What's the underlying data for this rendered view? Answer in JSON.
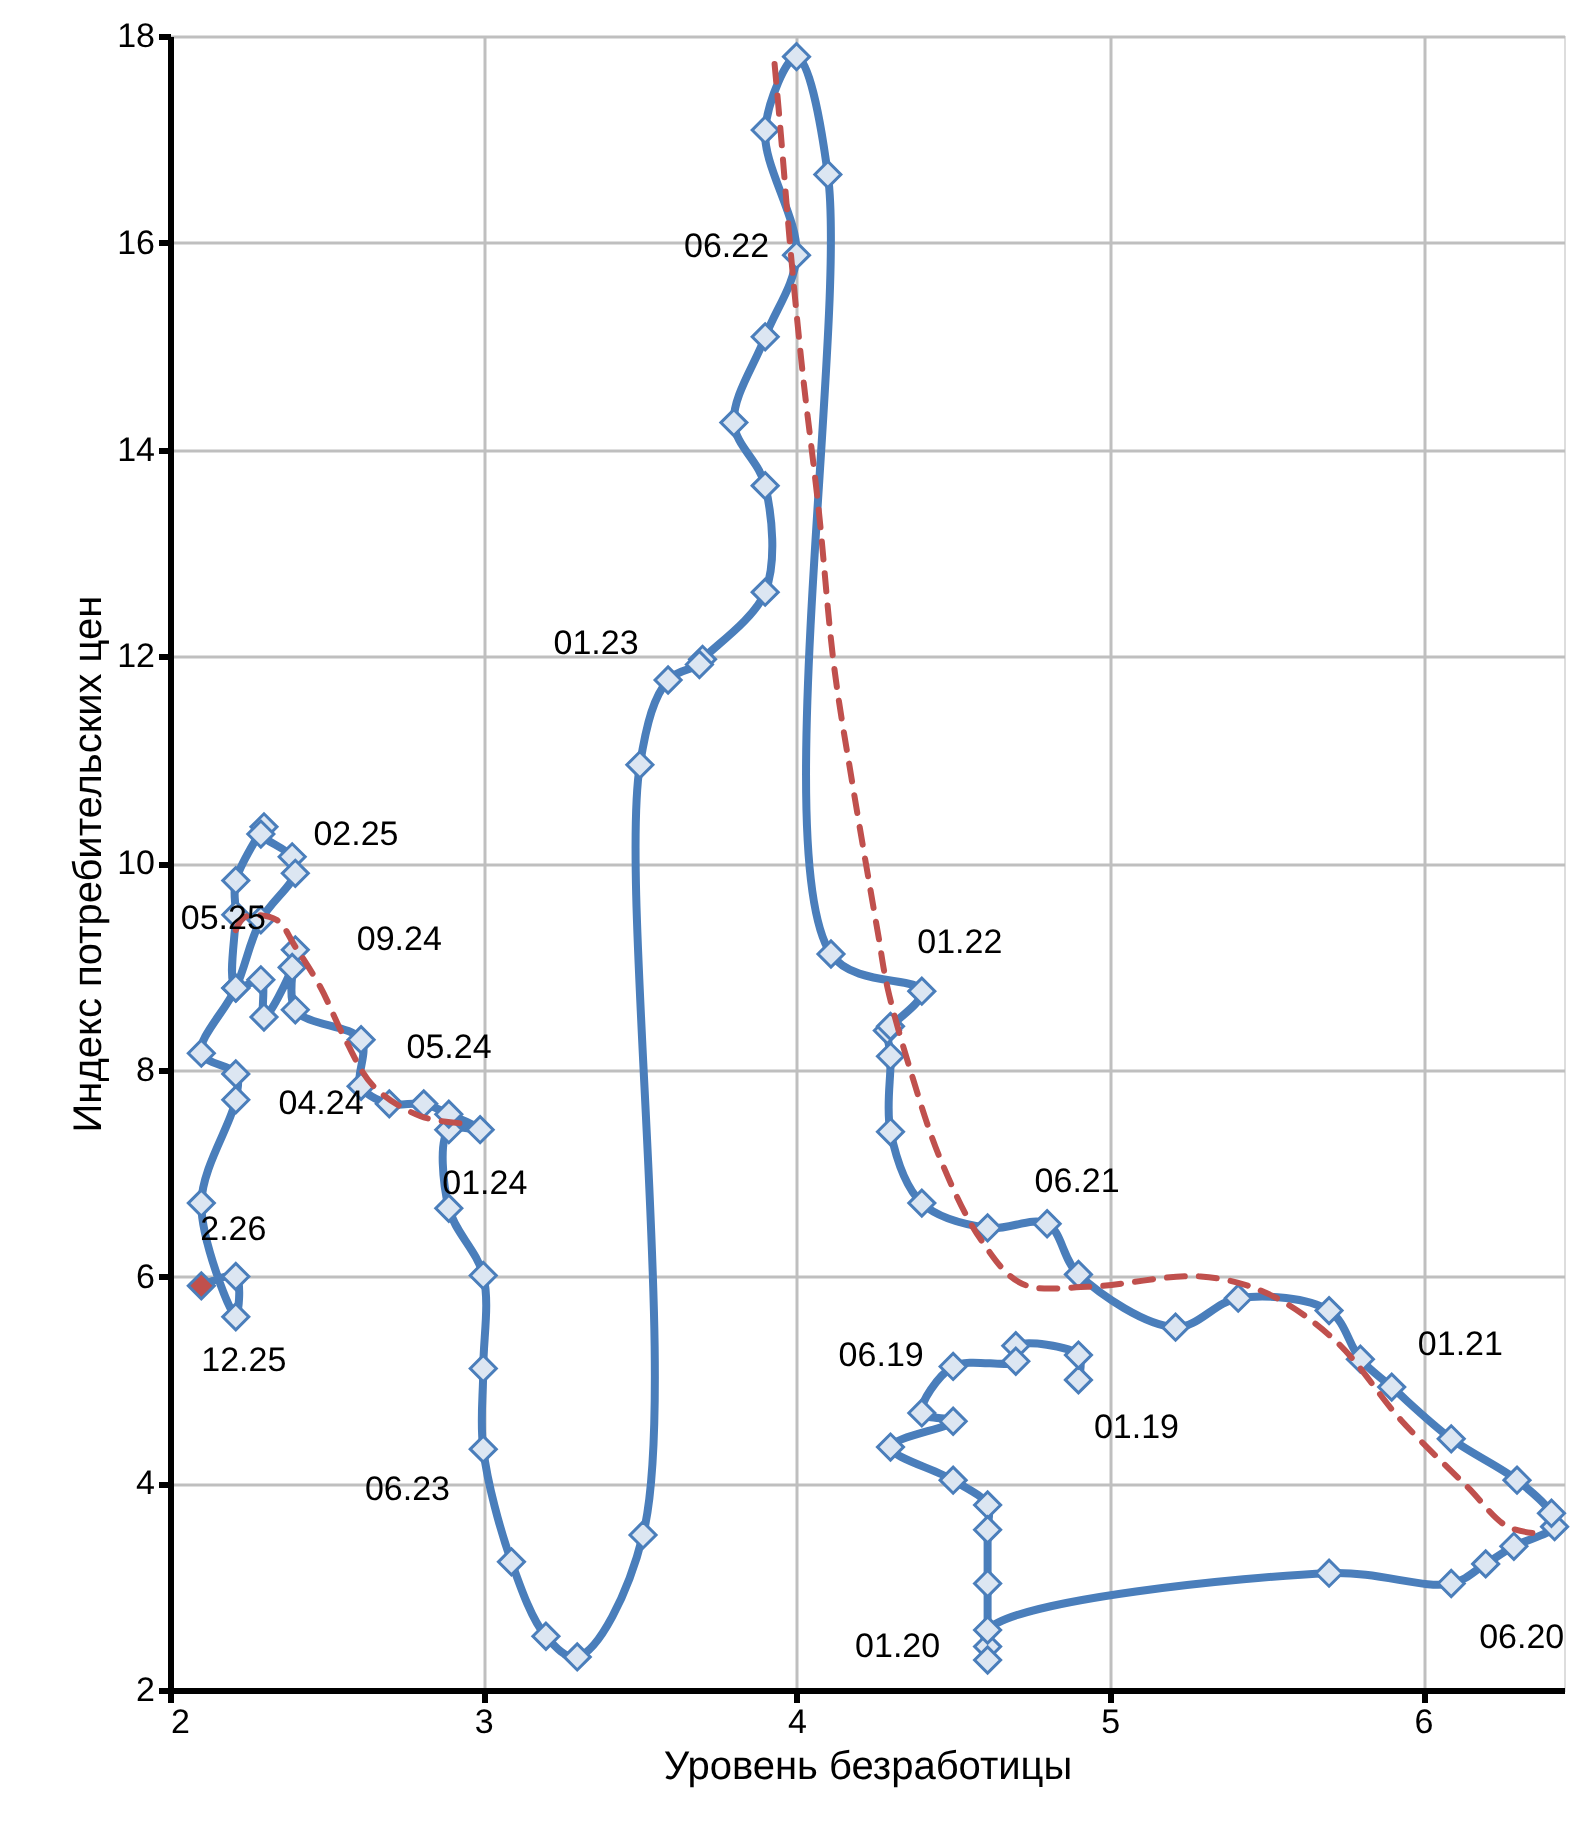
{
  "chart_data": {
    "type": "line",
    "xlabel": "Уровень безработицы",
    "ylabel": "Индекс потребительских цен",
    "xlim": [
      2,
      6.45
    ],
    "xticks": [
      2,
      3,
      4,
      5,
      6
    ],
    "ylim": [
      2,
      18
    ],
    "yticks": [
      2,
      4,
      6,
      8,
      10,
      12,
      14,
      16,
      18
    ],
    "grid": true,
    "series": [
      {
        "color": "#4a7ebb",
        "marker": "diamond",
        "line_style": "solid",
        "x": [
          4.9,
          4.9,
          4.7,
          4.7,
          4.5,
          4.4,
          4.5,
          4.3,
          4.5,
          4.61,
          4.61,
          4.61,
          4.61,
          4.61,
          4.61,
          5.7,
          6.09,
          6.2,
          6.29,
          6.42,
          6.41,
          6.3,
          6.09,
          5.9,
          5.8,
          5.7,
          5.41,
          5.21,
          4.9,
          4.8,
          4.61,
          4.4,
          4.3,
          4.3,
          4.29,
          4.3,
          4.4,
          4.11,
          4.1,
          4.0,
          3.9,
          4.0,
          3.9,
          3.8,
          3.9,
          3.9,
          3.7,
          3.69,
          3.59,
          3.5,
          3.51,
          3.3,
          3.2,
          3.09,
          3.0,
          3.0,
          3.0,
          2.89,
          2.89,
          2.99,
          2.89,
          2.81,
          2.7,
          2.61,
          2.61,
          2.4,
          2.4,
          2.39,
          2.3,
          2.29,
          2.21,
          2.21,
          2.21,
          2.3,
          2.29,
          2.39,
          2.4,
          2.29,
          2.21,
          2.1,
          2.21,
          2.21,
          2.1,
          2.21,
          2.21,
          2.1
        ],
        "values": [
          5.0,
          5.24,
          5.33,
          5.18,
          5.13,
          4.68,
          4.6,
          4.35,
          4.03,
          3.79,
          3.55,
          3.03,
          2.42,
          2.29,
          2.58,
          3.13,
          3.03,
          3.22,
          3.39,
          3.58,
          3.71,
          4.03,
          4.43,
          4.93,
          5.2,
          5.67,
          5.79,
          5.51,
          6.02,
          6.51,
          6.47,
          6.71,
          7.4,
          8.13,
          8.38,
          8.42,
          8.76,
          9.12,
          16.66,
          17.8,
          17.09,
          15.88,
          15.09,
          14.26,
          13.65,
          12.62,
          11.97,
          11.92,
          11.77,
          10.95,
          3.5,
          2.32,
          2.52,
          3.24,
          4.33,
          5.11,
          6.01,
          6.66,
          7.42,
          7.42,
          7.57,
          7.67,
          7.67,
          7.84,
          8.29,
          8.58,
          9.16,
          8.99,
          8.51,
          8.87,
          8.79,
          9.5,
          9.83,
          10.35,
          10.28,
          10.06,
          9.9,
          9.45,
          8.79,
          8.16,
          7.96,
          7.71,
          6.71,
          5.61,
          6.0,
          5.91
        ],
        "colors": [
          "#dce6f2",
          "#dce6f2",
          "#dce6f2",
          "#dce6f2",
          "#dce6f2",
          "#dce6f2",
          "#dce6f2",
          "#dce6f2",
          "#dce6f2",
          "#dce6f2",
          "#dce6f2",
          "#dce6f2",
          "#dce6f2",
          "#dce6f2",
          "#dce6f2",
          "#dce6f2",
          "#dce6f2",
          "#dce6f2",
          "#dce6f2",
          "#dce6f2",
          "#dce6f2",
          "#dce6f2",
          "#dce6f2",
          "#dce6f2",
          "#dce6f2",
          "#dce6f2",
          "#dce6f2",
          "#dce6f2",
          "#dce6f2",
          "#dce6f2",
          "#dce6f2",
          "#dce6f2",
          "#dce6f2",
          "#dce6f2",
          "#dce6f2",
          "#dce6f2",
          "#dce6f2",
          "#dce6f2",
          "#dce6f2",
          "#dce6f2",
          "#dce6f2",
          "#dce6f2",
          "#dce6f2",
          "#dce6f2",
          "#dce6f2",
          "#dce6f2",
          "#dce6f2",
          "#dce6f2",
          "#dce6f2",
          "#dce6f2",
          "#dce6f2",
          "#dce6f2",
          "#dce6f2",
          "#dce6f2",
          "#dce6f2",
          "#dce6f2",
          "#dce6f2",
          "#dce6f2",
          "#dce6f2",
          "#dce6f2",
          "#dce6f2",
          "#dce6f2",
          "#dce6f2",
          "#dce6f2",
          "#dce6f2",
          "#dce6f2",
          "#dce6f2",
          "#dce6f2",
          "#dce6f2",
          "#dce6f2",
          "#dce6f2",
          "#dce6f2",
          "#dce6f2",
          "#dce6f2",
          "#dce6f2",
          "#dce6f2",
          "#dce6f2",
          "#dce6f2",
          "#dce6f2",
          "#dce6f2",
          "#dce6f2",
          "#dce6f2",
          "#dce6f2",
          "#dce6f2",
          "#dce6f2",
          "#c0504d"
        ]
      },
      {
        "color": "#c0504d",
        "marker": "none",
        "line_style": "dashed",
        "x": [
          3.93,
          3.95,
          3.98,
          4.02,
          4.07,
          4.12,
          4.18,
          4.26,
          4.29,
          4.36,
          4.46,
          4.59,
          4.72,
          4.93,
          5.29,
          5.5,
          5.72,
          5.93,
          6.14,
          6.27,
          6.38
        ],
        "values": [
          17.73,
          17.05,
          15.96,
          14.73,
          13.44,
          11.9,
          10.74,
          9.32,
          8.8,
          8.03,
          7.13,
          6.35,
          5.93,
          5.9,
          6.0,
          5.84,
          5.38,
          4.61,
          3.97,
          3.58,
          3.51
        ]
      },
      {
        "color": "#c0504d",
        "marker": "none",
        "line_style": "dashed",
        "x": [
          2.21,
          2.24,
          2.34,
          2.4,
          2.48,
          2.56,
          2.65,
          2.8,
          2.94
        ],
        "values": [
          9.35,
          9.48,
          9.45,
          9.19,
          8.8,
          8.29,
          7.84,
          7.55,
          7.48
        ]
      }
    ],
    "annotations": [
      {
        "text": "01.19",
        "x": 4.9,
        "y": 5.0
      },
      {
        "text": "06.19",
        "x": 4.5,
        "y": 5.13
      },
      {
        "text": "01.20",
        "x": 4.61,
        "y": 2.42
      },
      {
        "text": "06.20",
        "x": 6.2,
        "y": 3.22
      },
      {
        "text": "01.21",
        "x": 5.8,
        "y": 5.2
      },
      {
        "text": "06.21",
        "x": 4.8,
        "y": 6.51
      },
      {
        "text": "01.22",
        "x": 4.4,
        "y": 8.76
      },
      {
        "text": "06.22",
        "x": 4.0,
        "y": 15.88
      },
      {
        "text": "01.23",
        "x": 3.59,
        "y": 11.77
      },
      {
        "text": "06.23",
        "x": 3.09,
        "y": 3.24
      },
      {
        "text": "01.24",
        "x": 2.89,
        "y": 7.57
      },
      {
        "text": "04.24",
        "x": 2.61,
        "y": 7.84
      },
      {
        "text": "05.24",
        "x": 2.61,
        "y": 8.29
      },
      {
        "text": "09.24",
        "x": 2.4,
        "y": 9.16
      },
      {
        "text": "02.25",
        "x": 2.3,
        "y": 10.35
      },
      {
        "text": "05.25",
        "x": 2.4,
        "y": 9.9
      },
      {
        "text": "12.25",
        "x": 2.21,
        "y": 5.61
      },
      {
        "text": "2.26",
        "x": 2.1,
        "y": 5.91
      }
    ]
  }
}
